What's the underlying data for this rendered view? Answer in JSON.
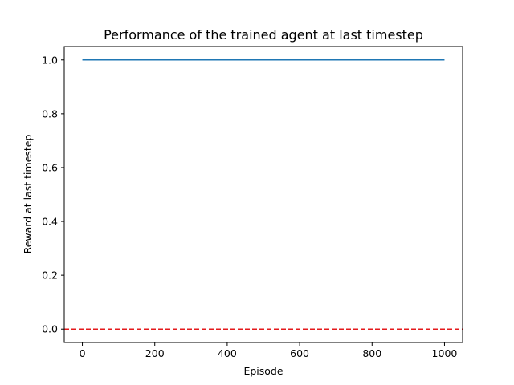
{
  "chart_data": {
    "type": "line",
    "title": "Performance of the trained agent at last timestep",
    "xlabel": "Episode",
    "ylabel": "Reward at last timestep",
    "xlim": [
      -50,
      1050
    ],
    "ylim": [
      -0.05,
      1.05
    ],
    "xticks": [
      "0",
      "200",
      "400",
      "600",
      "800",
      "1000"
    ],
    "yticks": [
      "0.0",
      "0.2",
      "0.4",
      "0.6",
      "0.8",
      "1.0"
    ],
    "grid": false,
    "series": [
      {
        "x": [
          0,
          1000
        ],
        "y": [
          1.0,
          1.0
        ],
        "color": "#1f77b4",
        "style": "solid"
      }
    ],
    "reference_lines": [
      {
        "orientation": "horizontal",
        "y": 0.0,
        "color": "#e41a1c",
        "style": "dashed"
      }
    ]
  }
}
